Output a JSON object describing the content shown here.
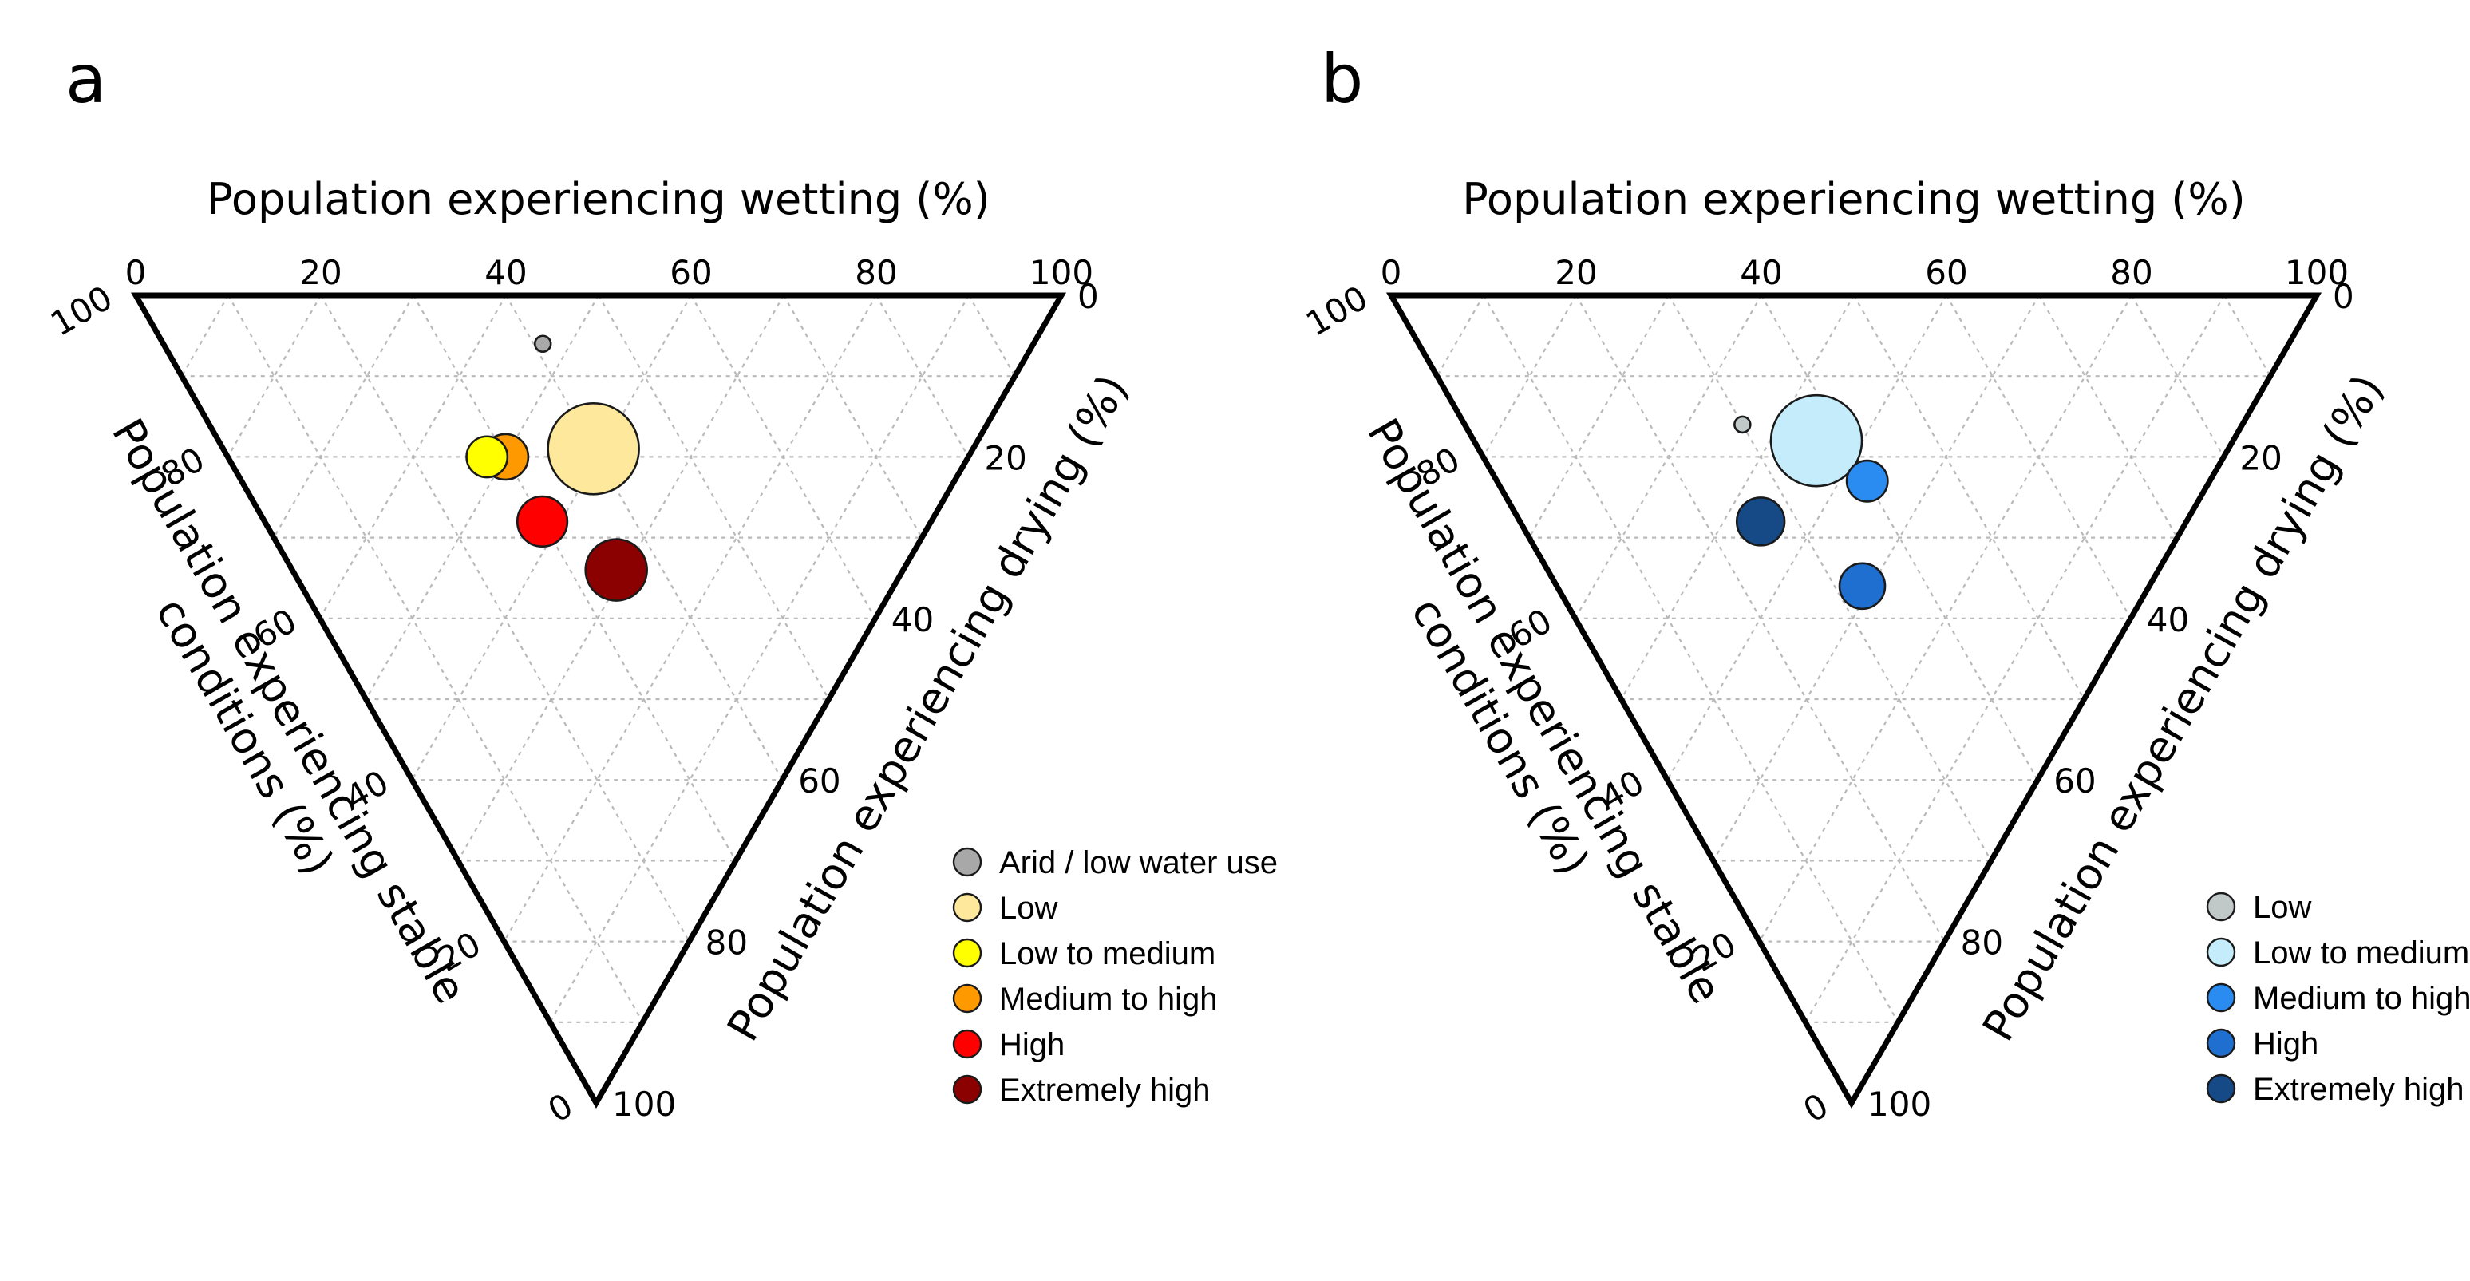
{
  "chart_data": [
    {
      "type": "scatter",
      "subtype": "ternary-bubble",
      "panel_label": "a",
      "axis_titles": {
        "top": "Population experiencing wetting (%)",
        "left": [
          "Population experiencing stable",
          "conditions (%)"
        ],
        "right": "Population experiencing drying (%)"
      },
      "ticks": {
        "wetting": [
          "0",
          "20",
          "40",
          "60",
          "80",
          "100"
        ],
        "stable": [
          "100",
          "80",
          "60",
          "40",
          "20",
          "0"
        ],
        "drying": [
          "0",
          "20",
          "40",
          "60",
          "80",
          "100"
        ]
      },
      "grid": true,
      "legend_position": "bottom-right",
      "points": [
        {
          "name": "Arid / low water use",
          "wetting": 41,
          "stable": 53,
          "drying": 6,
          "relative_size": 0.35,
          "color": "#a8a8a8"
        },
        {
          "name": "Low",
          "wetting": 40,
          "stable": 41,
          "drying": 19,
          "relative_size": 2.0,
          "color": "#fde89b"
        },
        {
          "name": "Low to medium",
          "wetting": 28,
          "stable": 52,
          "drying": 20,
          "relative_size": 0.9,
          "color": "#ffff00"
        },
        {
          "name": "Medium to high",
          "wetting": 30,
          "stable": 50,
          "drying": 20,
          "relative_size": 1.0,
          "color": "#ff9900"
        },
        {
          "name": "High",
          "wetting": 30,
          "stable": 42,
          "drying": 28,
          "relative_size": 1.1,
          "color": "#ff0000"
        },
        {
          "name": "Extremely high",
          "wetting": 35,
          "stable": 31,
          "drying": 34,
          "relative_size": 1.35,
          "color": "#8b0000"
        }
      ],
      "legend": [
        {
          "label": "Arid / low water use",
          "color": "#a8a8a8"
        },
        {
          "label": "Low",
          "color": "#fde89b"
        },
        {
          "label": "Low to medium",
          "color": "#ffff00"
        },
        {
          "label": "Medium to high",
          "color": "#ff9900"
        },
        {
          "label": "High",
          "color": "#ff0000"
        },
        {
          "label": "Extremely high",
          "color": "#8b0000"
        }
      ]
    },
    {
      "type": "scatter",
      "subtype": "ternary-bubble",
      "panel_label": "b",
      "axis_titles": {
        "top": "Population experiencing wetting (%)",
        "left": [
          "Population experiencing stable",
          "conditions (%)"
        ],
        "right": "Population experiencing drying (%)"
      },
      "ticks": {
        "wetting": [
          "0",
          "20",
          "40",
          "60",
          "80",
          "100"
        ],
        "stable": [
          "100",
          "80",
          "60",
          "40",
          "20",
          "0"
        ],
        "drying": [
          "0",
          "20",
          "40",
          "60",
          "80",
          "100"
        ]
      },
      "grid": true,
      "legend_position": "bottom-right",
      "points": [
        {
          "name": "Low",
          "wetting": 30,
          "stable": 54,
          "drying": 16,
          "relative_size": 0.35,
          "color": "#c0c8c8"
        },
        {
          "name": "Low to medium",
          "wetting": 37,
          "stable": 45,
          "drying": 18,
          "relative_size": 2.0,
          "color": "#c5ecfa"
        },
        {
          "name": "Medium to high",
          "wetting": 40,
          "stable": 37,
          "drying": 23,
          "relative_size": 0.9,
          "color": "#2a8cf0"
        },
        {
          "name": "High",
          "wetting": 33,
          "stable": 31,
          "drying": 36,
          "relative_size": 1.0,
          "color": "#1f6fd0"
        },
        {
          "name": "Extremely high",
          "wetting": 26,
          "stable": 46,
          "drying": 28,
          "relative_size": 1.05,
          "color": "#164a86"
        }
      ],
      "legend": [
        {
          "label": "Low",
          "color": "#c0c8c8"
        },
        {
          "label": "Low to medium",
          "color": "#c5ecfa"
        },
        {
          "label": "Medium to high",
          "color": "#2a8cf0"
        },
        {
          "label": "High",
          "color": "#1f6fd0"
        },
        {
          "label": "Extremely high",
          "color": "#164a86"
        }
      ]
    }
  ]
}
